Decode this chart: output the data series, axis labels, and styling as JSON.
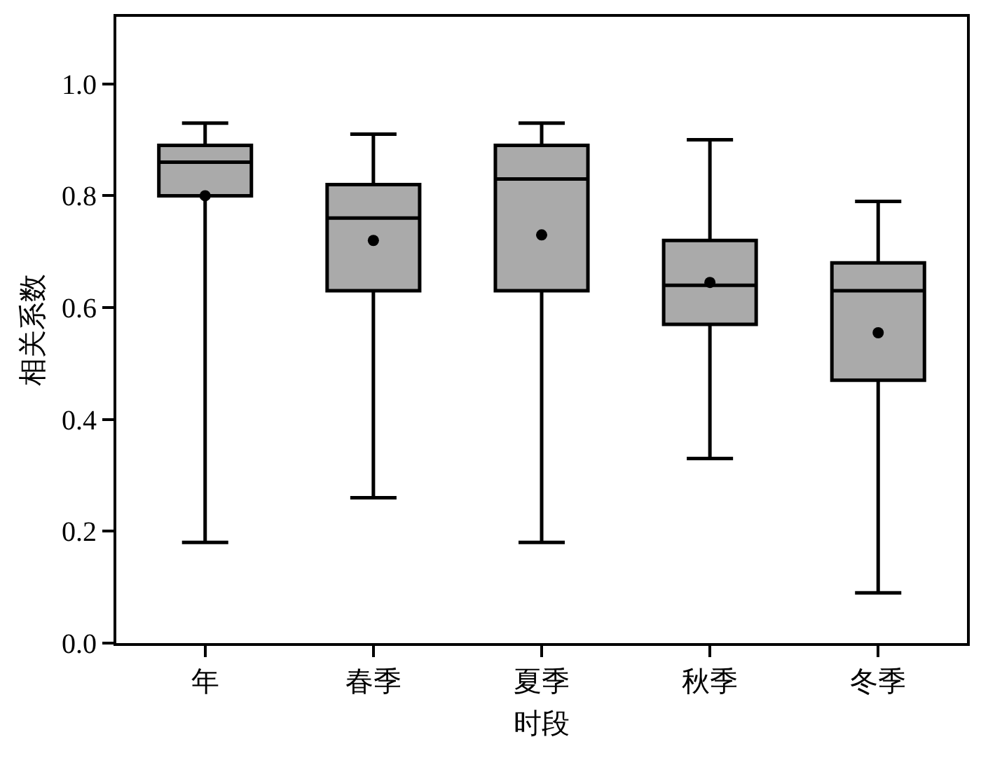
{
  "chart_data": {
    "type": "box",
    "xlabel": "时段",
    "ylabel": "相关系数",
    "categories": [
      "年",
      "春季",
      "夏季",
      "秋季",
      "冬季"
    ],
    "color": "#aaaaaa",
    "boxes": [
      {
        "low": 0.18,
        "q1": 0.8,
        "median": 0.86,
        "q3": 0.89,
        "high": 0.93,
        "mean": 0.8
      },
      {
        "low": 0.26,
        "q1": 0.63,
        "median": 0.76,
        "q3": 0.82,
        "high": 0.91,
        "mean": 0.72
      },
      {
        "low": 0.18,
        "q1": 0.63,
        "median": 0.83,
        "q3": 0.89,
        "high": 0.93,
        "mean": 0.73
      },
      {
        "low": 0.33,
        "q1": 0.57,
        "median": 0.64,
        "q3": 0.72,
        "high": 0.9,
        "mean": 0.645
      },
      {
        "low": 0.09,
        "q1": 0.47,
        "median": 0.63,
        "q3": 0.68,
        "high": 0.79,
        "mean": 0.555
      }
    ],
    "ylim": [
      0,
      1.12
    ],
    "yticks": [
      {
        "value": 0,
        "label": "0.0"
      },
      0.2,
      0.4,
      0.6,
      0.8,
      {
        "value": 1,
        "label": "1.0"
      }
    ],
    "grid": false
  }
}
